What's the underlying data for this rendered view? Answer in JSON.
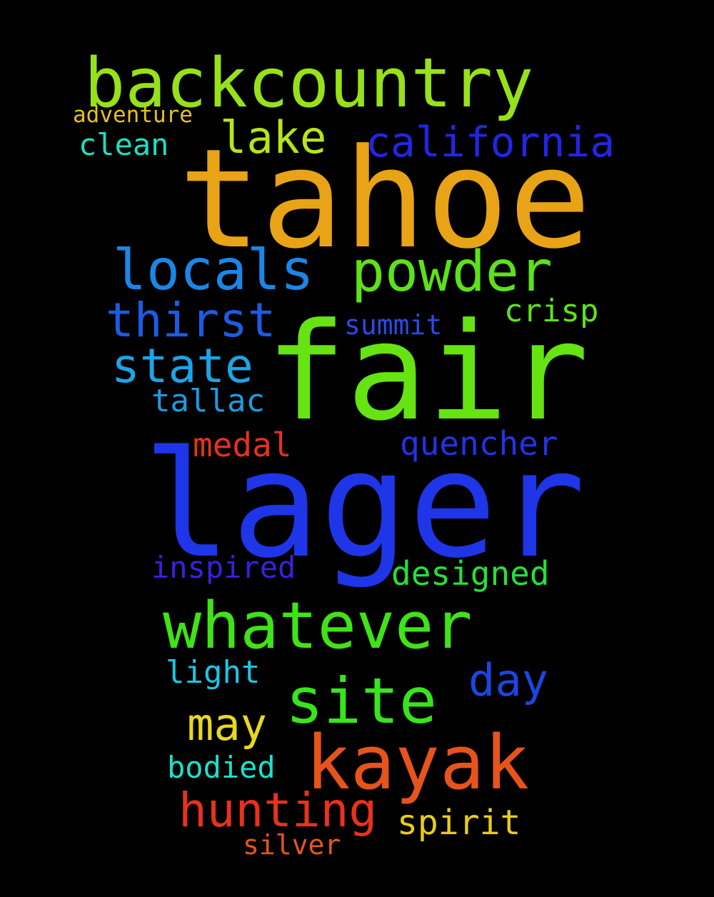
{
  "background_color": "#000000",
  "words": {
    "tahoe": {
      "text": "tahoe",
      "color": "#E8A317"
    },
    "fair": {
      "text": "fair",
      "color": "#66E312"
    },
    "lager": {
      "text": "lager",
      "color": "#1F35E8"
    },
    "backcountry": {
      "text": "backcountry",
      "color": "#97E11A"
    },
    "whatever": {
      "text": "whatever",
      "color": "#3FE317"
    },
    "site": {
      "text": "site",
      "color": "#37E51C"
    },
    "kayak": {
      "text": "kayak",
      "color": "#E6541C"
    },
    "locals": {
      "text": "locals",
      "color": "#1C86E6"
    },
    "powder": {
      "text": "powder",
      "color": "#5DE11A"
    },
    "lake": {
      "text": "lake",
      "color": "#B5E51A"
    },
    "california": {
      "text": "california",
      "color": "#2226E3"
    },
    "thirst": {
      "text": "thirst",
      "color": "#1C5CE3"
    },
    "state": {
      "text": "state",
      "color": "#1CA4E6"
    },
    "hunting": {
      "text": "hunting",
      "color": "#E8321C"
    },
    "may": {
      "text": "may",
      "color": "#E8D81C"
    },
    "day": {
      "text": "day",
      "color": "#1C46E3"
    },
    "crisp": {
      "text": "crisp",
      "color": "#5DE31A"
    },
    "summit": {
      "text": "summit",
      "color": "#2A4BE6"
    },
    "tallac": {
      "text": "tallac",
      "color": "#1C9CE0"
    },
    "medal": {
      "text": "medal",
      "color": "#E6311C"
    },
    "quencher": {
      "text": "quencher",
      "color": "#2233E6"
    },
    "inspired": {
      "text": "inspired",
      "color": "#3A20E0"
    },
    "designed": {
      "text": "designed",
      "color": "#26E03A"
    },
    "light": {
      "text": "light",
      "color": "#1CC6E6"
    },
    "bodied": {
      "text": "bodied",
      "color": "#1CE0CC"
    },
    "spirit": {
      "text": "spirit",
      "color": "#E8CC1C"
    },
    "silver": {
      "text": "silver",
      "color": "#E6561C"
    },
    "adventure": {
      "text": "adventure",
      "color": "#E6C01C"
    },
    "clean": {
      "text": "clean",
      "color": "#1CE0C2"
    }
  }
}
